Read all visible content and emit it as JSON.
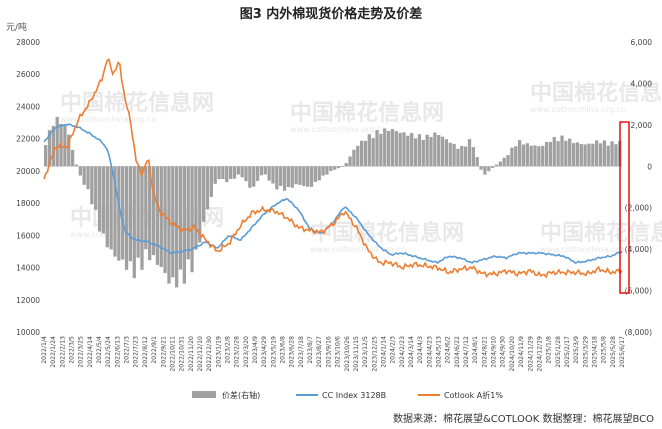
{
  "title": "图3  内外棉现货价格走势及价差",
  "left_unit": "元/吨",
  "source_note": "数据来源：棉花展望&COTLOOK  数据整理：棉花展望BCO",
  "watermark": {
    "brand": "中国棉花信息网",
    "url": "www.cottonchina.org.cn"
  },
  "colors": {
    "spread": "#a0a0a0",
    "cc_index": "#5b9bd5",
    "cotlook": "#ed7d31",
    "highlight_box": "#e00000"
  },
  "chart_data": {
    "type": "line",
    "title": "图3  内外棉现货价格走势及价差",
    "ylabel": "元/吨",
    "ylim": [
      10000,
      28000
    ],
    "y2lim": [
      -8000,
      6000
    ],
    "y_ticks": [
      "10000",
      "12000",
      "14000",
      "16000",
      "18000",
      "20000",
      "22000",
      "24000",
      "26000",
      "28000"
    ],
    "y2_ticks": [
      "(8,000)",
      "(6,000)",
      "(4,000)",
      "(2,000)",
      "0",
      "2,000",
      "4,000",
      "6,000"
    ],
    "x_tick_labels": [
      "2022/1/4",
      "2022/1/24",
      "2022/2/13",
      "2022/3/5",
      "2022/3/25",
      "2022/4/14",
      "2022/5/4",
      "2022/5/24",
      "2022/6/13",
      "2022/7/3",
      "2022/7/23",
      "2022/8/12",
      "2022/9/1",
      "2022/9/21",
      "2022/10/11",
      "2022/10/31",
      "2022/11/20",
      "2022/12/10",
      "2022/12/30",
      "2023/1/19",
      "2023/2/8",
      "2023/2/28",
      "2023/3/20",
      "2023/4/9",
      "2023/4/29",
      "2023/5/19",
      "2023/6/8",
      "2023/6/28",
      "2023/7/18",
      "2023/8/7",
      "2023/8/27",
      "2023/9/16",
      "2023/10/6",
      "2023/10/26",
      "2023/11/15",
      "2023/12/5",
      "2023/12/25",
      "2024/1/14",
      "2024/2/3",
      "2024/2/23",
      "2024/3/14",
      "2024/4/3",
      "2024/4/23",
      "2024/5/13",
      "2024/6/2",
      "2024/6/22",
      "2024/7/12",
      "2024/8/1",
      "2024/8/21",
      "2024/9/10",
      "2024/9/30",
      "2024/10/20",
      "2024/11/9",
      "2024/11/29",
      "2024/12/19",
      "2025/1/8",
      "2025/1/28",
      "2025/2/17",
      "2025/3/9",
      "2025/3/29",
      "2025/4/18",
      "2025/5/8",
      "2025/5/28",
      "2025/6/17"
    ],
    "legend_position": "bottom",
    "grid": false,
    "annotation": "red box marking latest spread values",
    "series": [
      {
        "name": "价差(右轴)",
        "type": "bar",
        "axis": "right",
        "t": [
          0,
          0.02,
          0.04,
          0.06,
          0.08,
          0.1,
          0.12,
          0.14,
          0.16,
          0.18,
          0.2,
          0.22,
          0.24,
          0.26,
          0.28,
          0.3,
          0.32,
          0.34,
          0.36,
          0.38,
          0.4,
          0.42,
          0.44,
          0.46,
          0.48,
          0.5,
          0.52,
          0.54,
          0.56,
          0.58,
          0.6,
          0.62,
          0.64,
          0.66,
          0.68,
          0.7,
          0.72,
          0.74,
          0.76,
          0.78,
          0.8,
          0.82,
          0.84,
          0.86,
          0.88,
          0.9,
          0.92,
          0.94,
          0.96,
          0.98,
          1.0
        ],
        "values": [
          1000,
          2500,
          2000,
          -300,
          -1500,
          -3500,
          -4500,
          -5000,
          -5500,
          -4500,
          -5000,
          -6000,
          -5800,
          -5000,
          -2500,
          -600,
          -800,
          -400,
          -1200,
          -300,
          -1100,
          -1200,
          -900,
          -1100,
          -600,
          -200,
          0,
          1000,
          1500,
          1800,
          1900,
          1700,
          1600,
          1500,
          1700,
          1300,
          900,
          1400,
          -500,
          0,
          500,
          1300,
          1100,
          1000,
          1400,
          1500,
          1200,
          1100,
          1300,
          1200,
          1250
        ]
      },
      {
        "name": "CC Index 3128B",
        "axis": "left",
        "t": [
          0,
          0.02,
          0.04,
          0.06,
          0.08,
          0.1,
          0.11,
          0.12,
          0.13,
          0.14,
          0.15,
          0.16,
          0.18,
          0.2,
          0.22,
          0.24,
          0.26,
          0.28,
          0.3,
          0.32,
          0.34,
          0.36,
          0.38,
          0.4,
          0.42,
          0.44,
          0.46,
          0.48,
          0.5,
          0.52,
          0.54,
          0.56,
          0.58,
          0.6,
          0.62,
          0.64,
          0.66,
          0.68,
          0.7,
          0.72,
          0.74,
          0.76,
          0.78,
          0.8,
          0.82,
          0.84,
          0.86,
          0.88,
          0.9,
          0.92,
          0.94,
          0.96,
          0.98,
          1.0
        ],
        "values": [
          21800,
          22700,
          22900,
          22700,
          22300,
          21800,
          21300,
          19800,
          17800,
          16300,
          15900,
          15700,
          15600,
          15300,
          14900,
          15000,
          15200,
          15600,
          15200,
          16000,
          15700,
          16500,
          17300,
          17900,
          18300,
          17600,
          16400,
          16100,
          16800,
          17800,
          17100,
          16100,
          15300,
          14800,
          14900,
          14700,
          14500,
          14300,
          14700,
          14600,
          14300,
          14500,
          14700,
          14600,
          14900,
          14900,
          14900,
          14800,
          14700,
          14300,
          14400,
          14600,
          14700,
          15000
        ]
      },
      {
        "name": "Cotlook A折1%",
        "axis": "left",
        "t": [
          0,
          0.02,
          0.04,
          0.06,
          0.08,
          0.1,
          0.11,
          0.12,
          0.13,
          0.14,
          0.15,
          0.16,
          0.17,
          0.18,
          0.19,
          0.2,
          0.22,
          0.24,
          0.26,
          0.28,
          0.3,
          0.32,
          0.34,
          0.36,
          0.38,
          0.4,
          0.42,
          0.44,
          0.46,
          0.48,
          0.5,
          0.52,
          0.54,
          0.56,
          0.58,
          0.6,
          0.62,
          0.64,
          0.66,
          0.68,
          0.7,
          0.72,
          0.74,
          0.76,
          0.78,
          0.8,
          0.82,
          0.84,
          0.86,
          0.88,
          0.9,
          0.92,
          0.94,
          0.96,
          0.98,
          1.0
        ],
        "values": [
          19500,
          21500,
          21500,
          23200,
          24300,
          25700,
          27000,
          26000,
          26800,
          24500,
          23000,
          20500,
          19800,
          20800,
          18500,
          17500,
          16800,
          16300,
          16500,
          15700,
          15000,
          15500,
          16600,
          17400,
          17600,
          17500,
          17100,
          16500,
          16300,
          16200,
          16700,
          17500,
          16500,
          15100,
          14300,
          14300,
          14000,
          14200,
          14100,
          14000,
          13700,
          13900,
          14000,
          13600,
          13600,
          13800,
          13600,
          13800,
          13500,
          13700,
          13700,
          13700,
          13600,
          13900,
          13700,
          13800
        ]
      }
    ]
  }
}
